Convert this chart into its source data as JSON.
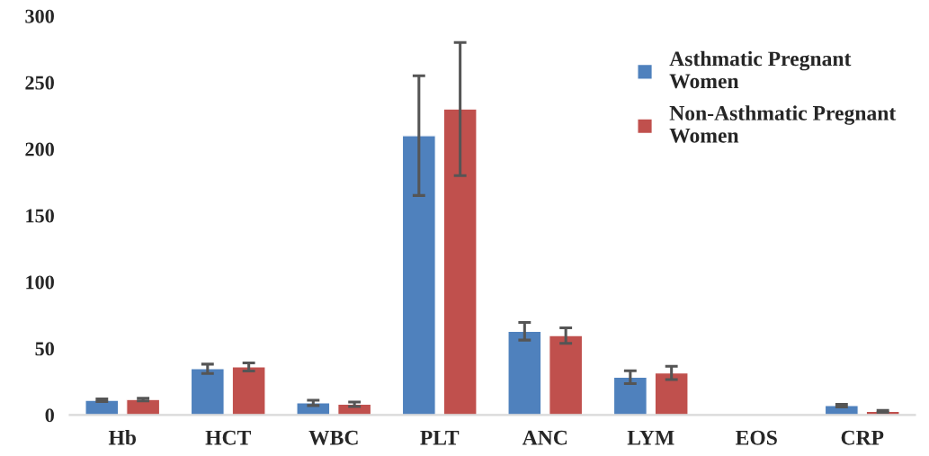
{
  "chart_data": {
    "type": "bar",
    "categories": [
      "Hb",
      "HCT",
      "WBC",
      "PLT",
      "ANC",
      "LYM",
      "EOS",
      "CRP"
    ],
    "series": [
      {
        "name": "Asthmatic Pregnant Women",
        "color": "#4f81bd",
        "values": [
          11,
          34.7,
          9.1,
          210,
          62.9,
          28.4,
          null,
          7
        ],
        "errors": [
          1,
          3.5,
          2,
          45,
          6.6,
          4.8,
          null,
          1
        ]
      },
      {
        "name": "Non-Asthmatic Pregnant Women",
        "color": "#c0504d",
        "values": [
          11.6,
          36.1,
          8,
          230,
          59.7,
          31.6,
          null,
          2.7
        ],
        "errors": [
          1,
          3,
          1.7,
          50,
          5.8,
          5,
          null,
          0.7
        ]
      }
    ],
    "ylim": [
      0,
      300
    ],
    "yticks": [
      0,
      50,
      100,
      150,
      200,
      250,
      300
    ],
    "grid": false,
    "legend": "top right"
  }
}
